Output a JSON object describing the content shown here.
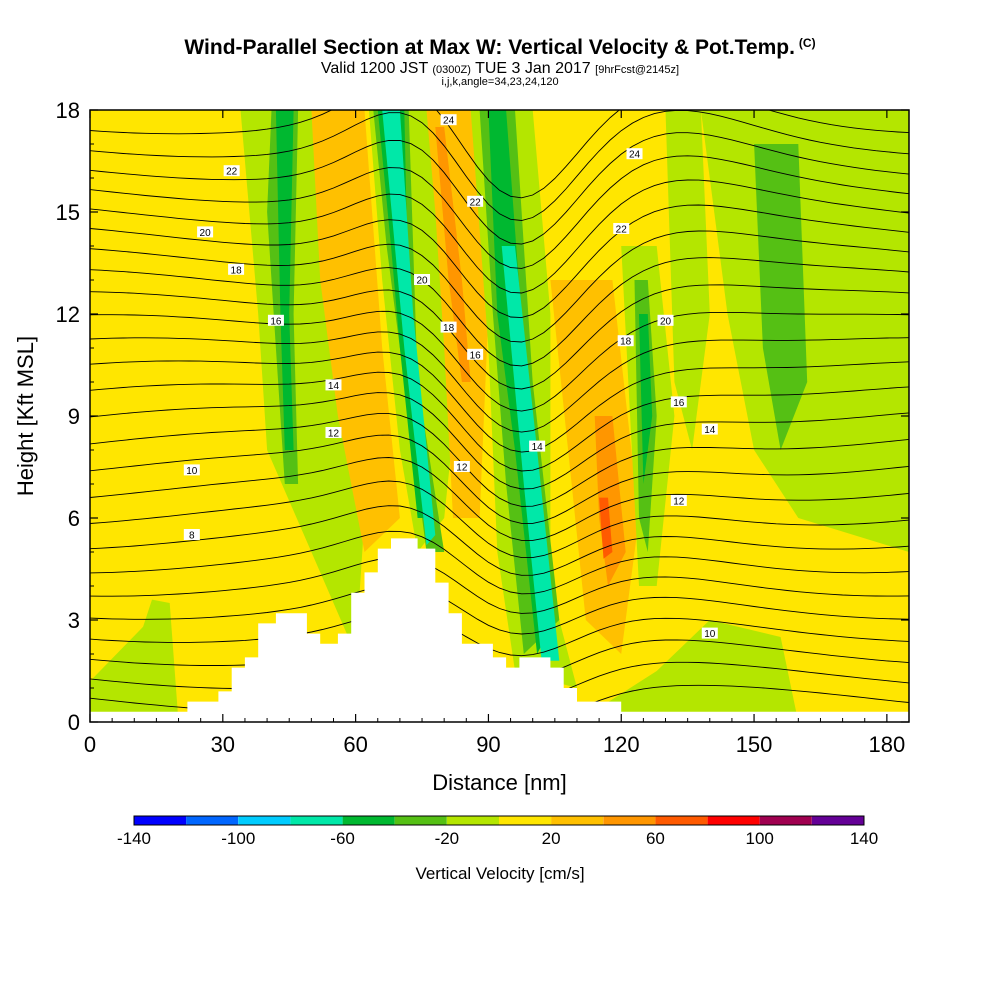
{
  "header": {
    "title": "Wind-Parallel Section at Max W: Vertical Velocity & Pot.Temp.",
    "copyright": "(C)",
    "valid_prefix": "Valid 1200 JST",
    "valid_utc": "(0300Z)",
    "valid_date": "TUE 3 Jan 2017",
    "forecast": "[9hrFcst@2145z]",
    "params": "i,j,k,angle=34,23,24,120"
  },
  "chart_data": {
    "type": "heatmap",
    "xlabel": "Distance [nm]",
    "ylabel": "Height [Kft MSL]",
    "xlim": [
      0,
      185
    ],
    "ylim": [
      0,
      18
    ],
    "x_ticks": [
      "0",
      "30",
      "60",
      "90",
      "120",
      "150",
      "180"
    ],
    "x_tick_values": [
      0,
      30,
      60,
      90,
      120,
      150,
      180
    ],
    "y_ticks": [
      "0",
      "3",
      "6",
      "9",
      "12",
      "15",
      "18"
    ],
    "y_tick_values": [
      0,
      3,
      6,
      9,
      12,
      15,
      18
    ],
    "colorbar": {
      "title": "Vertical Velocity [cm/s]",
      "labels": [
        "-140",
        "-100",
        "-60",
        "-20",
        "20",
        "60",
        "100",
        "140"
      ],
      "label_values": [
        -140,
        -100,
        -60,
        -20,
        20,
        60,
        100,
        140
      ],
      "bins": [
        -140,
        -120,
        -100,
        -80,
        -60,
        -40,
        -20,
        0,
        20,
        40,
        60,
        80,
        100,
        120,
        140
      ],
      "colors": [
        "#0000ff",
        "#0066ff",
        "#00ccff",
        "#00e8a8",
        "#00b830",
        "#55c014",
        "#b4e600",
        "#ffe600",
        "#ffc000",
        "#ff9600",
        "#ff5a00",
        "#ff0000",
        "#a00050",
        "#640096"
      ]
    },
    "isentropes": {
      "label_values": [
        8,
        10,
        12,
        14,
        16,
        18,
        20,
        22,
        24
      ],
      "line_color": "#000000"
    },
    "contour_labels": [
      {
        "text": "24",
        "x": 81,
        "y": 17.7
      },
      {
        "text": "24",
        "x": 123,
        "y": 16.7
      },
      {
        "text": "22",
        "x": 32,
        "y": 16.2
      },
      {
        "text": "22",
        "x": 87,
        "y": 15.3
      },
      {
        "text": "22",
        "x": 120,
        "y": 14.5
      },
      {
        "text": "20",
        "x": 26,
        "y": 14.4
      },
      {
        "text": "20",
        "x": 75,
        "y": 13.0
      },
      {
        "text": "20",
        "x": 130,
        "y": 11.8
      },
      {
        "text": "18",
        "x": 33,
        "y": 13.3
      },
      {
        "text": "18",
        "x": 81,
        "y": 11.6
      },
      {
        "text": "18",
        "x": 121,
        "y": 11.2
      },
      {
        "text": "16",
        "x": 42,
        "y": 11.8
      },
      {
        "text": "16",
        "x": 87,
        "y": 10.8
      },
      {
        "text": "16",
        "x": 133,
        "y": 9.4
      },
      {
        "text": "14",
        "x": 55,
        "y": 9.9
      },
      {
        "text": "14",
        "x": 101,
        "y": 8.1
      },
      {
        "text": "14",
        "x": 140,
        "y": 8.6
      },
      {
        "text": "12",
        "x": 55,
        "y": 8.5
      },
      {
        "text": "12",
        "x": 84,
        "y": 7.5
      },
      {
        "text": "12",
        "x": 133,
        "y": 6.5
      },
      {
        "text": "10",
        "x": 23,
        "y": 7.4
      },
      {
        "text": "10",
        "x": 140,
        "y": 2.6
      },
      {
        "text": "8",
        "x": 23,
        "y": 5.5
      }
    ],
    "terrain": {
      "x": [
        0,
        22,
        22,
        29,
        29,
        32,
        32,
        35,
        35,
        38,
        38,
        42,
        42,
        49,
        49,
        52,
        52,
        56,
        56,
        59,
        59,
        62,
        62,
        65,
        65,
        68,
        68,
        74,
        74,
        78,
        78,
        81,
        81,
        84,
        84,
        91,
        91,
        94,
        94,
        97,
        97,
        104,
        104,
        107,
        107,
        110,
        110,
        120,
        120,
        185
      ],
      "y": [
        0.3,
        0.3,
        0.6,
        0.6,
        0.9,
        0.9,
        1.6,
        1.6,
        1.9,
        1.9,
        2.9,
        2.9,
        3.2,
        3.2,
        2.6,
        2.6,
        2.3,
        2.3,
        2.6,
        2.6,
        3.8,
        3.8,
        4.4,
        4.4,
        5.1,
        5.1,
        5.4,
        5.4,
        5.1,
        5.1,
        4.1,
        4.1,
        3.2,
        3.2,
        2.3,
        2.3,
        1.9,
        1.9,
        1.6,
        1.6,
        1.9,
        1.9,
        1.6,
        1.6,
        1.0,
        1.0,
        0.6,
        0.6,
        0.3,
        0.3
      ]
    }
  },
  "colorbar_title": "Vertical Velocity [cm/s]"
}
